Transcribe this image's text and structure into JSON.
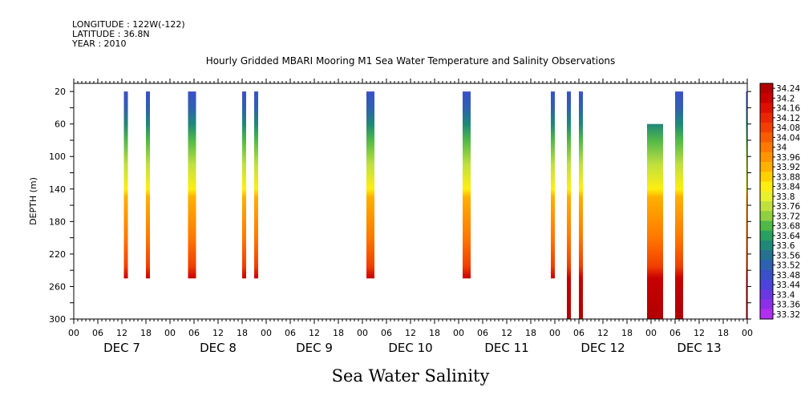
{
  "header": {
    "longitude": "LONGITUDE : 122W(-122)",
    "latitude": "LATITUDE : 36.8N",
    "year": "YEAR : 2010"
  },
  "chart_data": {
    "type": "heatmap",
    "title": "Hourly Gridded MBARI Mooring M1 Sea Water Temperature and Salinity Observations",
    "subtitle": "Sea Water Salinity",
    "xlabel": "",
    "ylabel": "DEPTH (m)",
    "x_range_hours": [
      0,
      168
    ],
    "y_range": [
      10,
      300
    ],
    "y_reversed": true,
    "y_ticks": [
      20,
      60,
      100,
      140,
      180,
      220,
      260,
      300
    ],
    "x_tick_labels": [
      "00",
      "06",
      "12",
      "18",
      "00",
      "06",
      "12",
      "18",
      "00",
      "06",
      "12",
      "18",
      "00",
      "06",
      "12",
      "18",
      "00",
      "06",
      "12",
      "18",
      "00",
      "06",
      "12",
      "18",
      "00",
      "06",
      "12",
      "18",
      "00"
    ],
    "day_labels": [
      "DEC  7",
      "DEC  8",
      "DEC  9",
      "DEC 10",
      "DEC 11",
      "DEC 12",
      "DEC 13"
    ],
    "colorbar": {
      "levels": [
        "34.24",
        "34.2",
        "34.16",
        "34.12",
        "34.08",
        "34.04",
        "34",
        "33.96",
        "33.92",
        "33.88",
        "33.84",
        "33.8",
        "33.76",
        "33.72",
        "33.68",
        "33.64",
        "33.6",
        "33.56",
        "33.52",
        "33.48",
        "33.44",
        "33.4",
        "33.36",
        "33.32"
      ],
      "colors": [
        "#b00000",
        "#c80000",
        "#dc1000",
        "#e82800",
        "#f04000",
        "#f85c00",
        "#ff7800",
        "#ff9400",
        "#ffb000",
        "#ffd000",
        "#ffee10",
        "#e8f030",
        "#c0e040",
        "#90d040",
        "#50b848",
        "#28a060",
        "#208878",
        "#287090",
        "#3060b0",
        "#3a50c8",
        "#4a44d8",
        "#6a38e0",
        "#8c30e8",
        "#b030f0"
      ]
    },
    "profile_colors": [
      {
        "depth": 20,
        "color": "#3a50c8"
      },
      {
        "depth": 40,
        "color": "#3060b0"
      },
      {
        "depth": 60,
        "color": "#208878"
      },
      {
        "depth": 80,
        "color": "#50b848"
      },
      {
        "depth": 110,
        "color": "#c0e040"
      },
      {
        "depth": 140,
        "color": "#ffee10"
      },
      {
        "depth": 150,
        "color": "#ffb000"
      },
      {
        "depth": 200,
        "color": "#ff7800"
      },
      {
        "depth": 235,
        "color": "#f04000"
      },
      {
        "depth": 250,
        "color": "#c80000"
      },
      {
        "depth": 300,
        "color": "#b00000"
      }
    ],
    "columns": [
      {
        "t0": 12.5,
        "t1": 13.5,
        "top": 20,
        "bottom": 250
      },
      {
        "t0": 18.0,
        "t1": 19.0,
        "top": 20,
        "bottom": 250
      },
      {
        "t0": 28.5,
        "t1": 30.5,
        "top": 20,
        "bottom": 250
      },
      {
        "t0": 42.0,
        "t1": 43.0,
        "top": 20,
        "bottom": 250
      },
      {
        "t0": 45.0,
        "t1": 46.0,
        "top": 20,
        "bottom": 250
      },
      {
        "t0": 73.0,
        "t1": 75.0,
        "top": 20,
        "bottom": 250
      },
      {
        "t0": 97.0,
        "t1": 99.0,
        "top": 20,
        "bottom": 250
      },
      {
        "t0": 119.0,
        "t1": 120.0,
        "top": 20,
        "bottom": 250
      },
      {
        "t0": 123.0,
        "t1": 124.0,
        "top": 20,
        "bottom": 300
      },
      {
        "t0": 126.0,
        "t1": 127.0,
        "top": 20,
        "bottom": 300
      },
      {
        "t0": 143.0,
        "t1": 147.0,
        "top": 60,
        "bottom": 300
      },
      {
        "t0": 150.0,
        "t1": 152.0,
        "top": 20,
        "bottom": 300
      },
      {
        "t0": 167.7,
        "t1": 168.0,
        "top": 20,
        "bottom": 300
      }
    ]
  }
}
